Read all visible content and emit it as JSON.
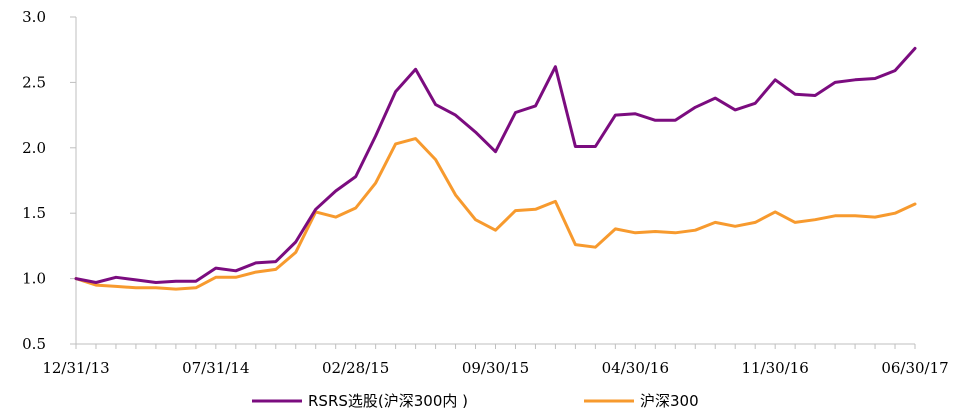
{
  "chart_data": {
    "type": "line",
    "x_tick_labels": [
      "12/31/13",
      "07/31/14",
      "02/28/15",
      "09/30/15",
      "04/30/16",
      "11/30/16",
      "06/30/17"
    ],
    "x_tick_positions": [
      0,
      7,
      14,
      21,
      28,
      35,
      42
    ],
    "y_tick_labels": [
      "0.5",
      "1.0",
      "1.5",
      "2.0",
      "2.5",
      "3.0"
    ],
    "ylim": [
      0.5,
      3.0
    ],
    "xlim": [
      0,
      42
    ],
    "grid": false,
    "legend_position": "bottom",
    "series": [
      {
        "name": "RSRS选股(沪深300内 )",
        "color": "#7B0C7F",
        "values": [
          1.0,
          0.97,
          1.01,
          0.99,
          0.97,
          0.98,
          0.98,
          1.08,
          1.06,
          1.12,
          1.13,
          1.28,
          1.53,
          1.67,
          1.78,
          2.09,
          2.43,
          2.6,
          2.33,
          2.25,
          2.12,
          1.97,
          2.27,
          2.32,
          2.62,
          2.01,
          2.01,
          2.25,
          2.26,
          2.21,
          2.21,
          2.31,
          2.38,
          2.29,
          2.34,
          2.52,
          2.41,
          2.4,
          2.5,
          2.52,
          2.53,
          2.59,
          2.76
        ]
      },
      {
        "name": "沪深300",
        "color": "#F79A2E",
        "values": [
          1.0,
          0.95,
          0.94,
          0.93,
          0.93,
          0.92,
          0.93,
          1.01,
          1.01,
          1.05,
          1.07,
          1.2,
          1.51,
          1.47,
          1.54,
          1.73,
          2.03,
          2.07,
          1.91,
          1.64,
          1.45,
          1.37,
          1.52,
          1.53,
          1.59,
          1.26,
          1.24,
          1.38,
          1.35,
          1.36,
          1.35,
          1.37,
          1.43,
          1.4,
          1.43,
          1.51,
          1.43,
          1.45,
          1.48,
          1.48,
          1.47,
          1.5,
          1.57
        ]
      }
    ]
  }
}
